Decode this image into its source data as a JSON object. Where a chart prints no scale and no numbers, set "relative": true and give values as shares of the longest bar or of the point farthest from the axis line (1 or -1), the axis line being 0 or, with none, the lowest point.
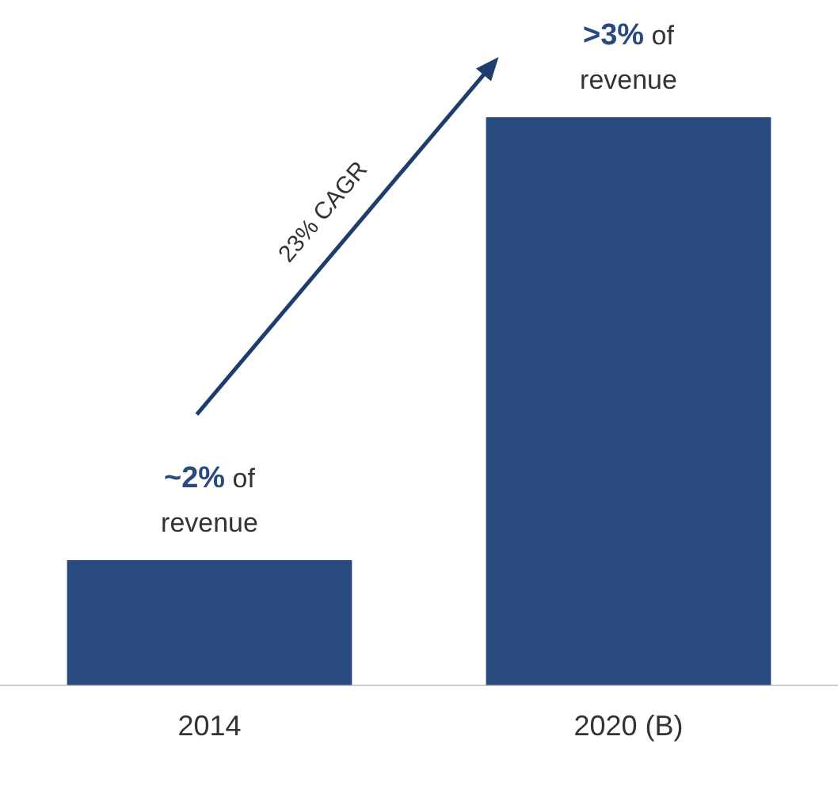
{
  "chart_data": {
    "type": "bar",
    "relative": true,
    "categories": [
      "2014",
      "2020 (B)"
    ],
    "values": [
      0.22,
      1
    ],
    "color": "#284a7e",
    "annotations": [
      "23% CAGR",
      "~2% of revenue",
      ">3% of revenue"
    ],
    "grid": false,
    "legend": false
  }
}
